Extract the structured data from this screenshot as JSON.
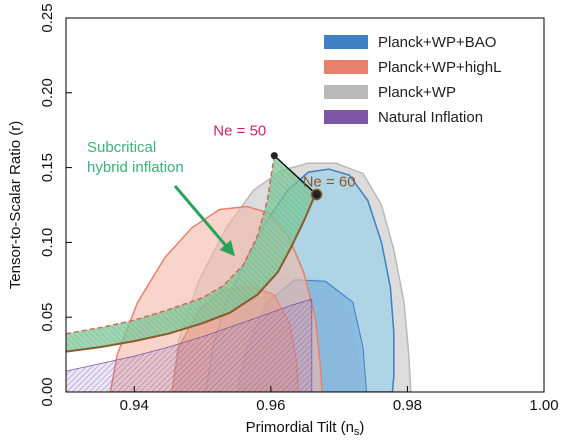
{
  "chart_data": {
    "type": "area",
    "xlabel": "Primordial Tilt (n",
    "xlabel_sub": "s",
    "xlabel_close": ")",
    "ylabel": "Tensor-to-Scalar Ratio (r)",
    "xlim": [
      0.93,
      1.0
    ],
    "ylim": [
      0.0,
      0.25
    ],
    "x_ticks": [
      0.94,
      0.96,
      0.98,
      1.0
    ],
    "x_tick_labels": [
      "0.94",
      "0.96",
      "0.98",
      "1.00"
    ],
    "y_ticks": [
      0.0,
      0.05,
      0.1,
      0.15,
      0.2,
      0.25
    ],
    "y_tick_labels": [
      "0.00",
      "0.05",
      "0.10",
      "0.15",
      "0.20",
      "0.25"
    ],
    "grid": false,
    "legend_position": "top-right",
    "colors": {
      "bao": "#3f7fc4",
      "bao_fill": "#9fd2ea",
      "highl": "#e8816b",
      "highl_fill": "#f3b7a6",
      "wp": "#b9b9b9",
      "wp_fill": "#d6d6d6",
      "natural": "#7e56a8",
      "natural_fill": "#8f73c0",
      "hybrid": "#3bb27a",
      "hybrid_fill": "#7fc89a",
      "curve": "#8a5a2a",
      "ne50_text": "#d2246c",
      "ne60_text": "#8a5a2a",
      "arrow": "#2aa35a"
    },
    "series": [
      {
        "name": "Planck+WP+BAO",
        "type": "contour",
        "outer": [
          [
            0.9505,
            0.0
          ],
          [
            0.9515,
            0.03
          ],
          [
            0.9535,
            0.06
          ],
          [
            0.9565,
            0.09
          ],
          [
            0.9595,
            0.115
          ],
          [
            0.9625,
            0.135
          ],
          [
            0.9655,
            0.147
          ],
          [
            0.9685,
            0.149
          ],
          [
            0.9715,
            0.145
          ],
          [
            0.9742,
            0.128
          ],
          [
            0.9762,
            0.1
          ],
          [
            0.9775,
            0.07
          ],
          [
            0.978,
            0.04
          ],
          [
            0.978,
            0.01
          ],
          [
            0.9778,
            0.0
          ]
        ],
        "inner": [
          [
            0.955,
            0.0
          ],
          [
            0.9565,
            0.03
          ],
          [
            0.9595,
            0.06
          ],
          [
            0.9635,
            0.075
          ],
          [
            0.968,
            0.074
          ],
          [
            0.972,
            0.06
          ],
          [
            0.9735,
            0.03
          ],
          [
            0.974,
            0.0
          ]
        ]
      },
      {
        "name": "Planck+WP+highL",
        "type": "contour",
        "outer": [
          [
            0.9365,
            0.0
          ],
          [
            0.9375,
            0.025
          ],
          [
            0.9405,
            0.06
          ],
          [
            0.9445,
            0.09
          ],
          [
            0.9485,
            0.11
          ],
          [
            0.9525,
            0.122
          ],
          [
            0.9565,
            0.124
          ],
          [
            0.9595,
            0.12
          ],
          [
            0.9625,
            0.105
          ],
          [
            0.9648,
            0.08
          ],
          [
            0.9665,
            0.05
          ],
          [
            0.9672,
            0.02
          ],
          [
            0.9675,
            0.0
          ]
        ],
        "inner": [
          [
            0.9455,
            0.0
          ],
          [
            0.9465,
            0.03
          ],
          [
            0.9495,
            0.055
          ],
          [
            0.953,
            0.068
          ],
          [
            0.957,
            0.071
          ],
          [
            0.9605,
            0.065
          ],
          [
            0.9628,
            0.045
          ],
          [
            0.9638,
            0.02
          ],
          [
            0.964,
            0.0
          ]
        ]
      },
      {
        "name": "Planck+WP",
        "type": "contour",
        "outer": [
          [
            0.9455,
            0.0
          ],
          [
            0.9465,
            0.035
          ],
          [
            0.9495,
            0.075
          ],
          [
            0.9535,
            0.11
          ],
          [
            0.9575,
            0.135
          ],
          [
            0.9615,
            0.148
          ],
          [
            0.9655,
            0.153
          ],
          [
            0.9695,
            0.153
          ],
          [
            0.9735,
            0.146
          ],
          [
            0.9762,
            0.125
          ],
          [
            0.978,
            0.095
          ],
          [
            0.9795,
            0.06
          ],
          [
            0.9802,
            0.025
          ],
          [
            0.9805,
            0.0
          ]
        ],
        "inner": [
          [
            0.952,
            0.0
          ],
          [
            0.953,
            0.035
          ],
          [
            0.9565,
            0.06
          ],
          [
            0.9605,
            0.075
          ],
          [
            0.965,
            0.078
          ],
          [
            0.969,
            0.072
          ],
          [
            0.9715,
            0.05
          ],
          [
            0.9728,
            0.02
          ],
          [
            0.973,
            0.0
          ]
        ]
      },
      {
        "name": "Natural Inflation",
        "type": "band",
        "upper": [
          [
            0.93,
            0.014
          ],
          [
            0.935,
            0.019
          ],
          [
            0.94,
            0.024
          ],
          [
            0.945,
            0.03
          ],
          [
            0.95,
            0.037
          ],
          [
            0.955,
            0.045
          ],
          [
            0.96,
            0.053
          ],
          [
            0.963,
            0.058
          ],
          [
            0.966,
            0.062
          ]
        ],
        "lower": [
          [
            0.93,
            0.0
          ],
          [
            0.94,
            0.0
          ],
          [
            0.95,
            0.0
          ],
          [
            0.96,
            0.0
          ],
          [
            0.966,
            0.0
          ]
        ]
      },
      {
        "name": "Subcritical hybrid inflation",
        "type": "band",
        "upper": [
          [
            0.93,
            0.039
          ],
          [
            0.935,
            0.043
          ],
          [
            0.94,
            0.048
          ],
          [
            0.945,
            0.055
          ],
          [
            0.95,
            0.063
          ],
          [
            0.953,
            0.071
          ],
          [
            0.956,
            0.085
          ],
          [
            0.958,
            0.104
          ],
          [
            0.9595,
            0.128
          ],
          [
            0.9605,
            0.158
          ]
        ],
        "lower": [
          [
            0.93,
            0.027
          ],
          [
            0.935,
            0.03
          ],
          [
            0.94,
            0.034
          ],
          [
            0.945,
            0.039
          ],
          [
            0.95,
            0.046
          ],
          [
            0.954,
            0.053
          ],
          [
            0.958,
            0.065
          ],
          [
            0.961,
            0.08
          ],
          [
            0.963,
            0.097
          ],
          [
            0.965,
            0.116
          ],
          [
            0.9665,
            0.132
          ]
        ]
      }
    ],
    "points": [
      {
        "label": "Ne = 50",
        "x": 0.9605,
        "y": 0.158
      },
      {
        "label": "Ne = 60",
        "x": 0.9667,
        "y": 0.132
      }
    ],
    "annotations": [
      {
        "text_line1": "Subcritical",
        "text_line2": "hybrid inflation"
      }
    ],
    "legend": [
      {
        "label": "Planck+WP+BAO"
      },
      {
        "label": "Planck+WP+highL"
      },
      {
        "label": "Planck+WP"
      },
      {
        "label": "Natural Inflation"
      }
    ]
  }
}
